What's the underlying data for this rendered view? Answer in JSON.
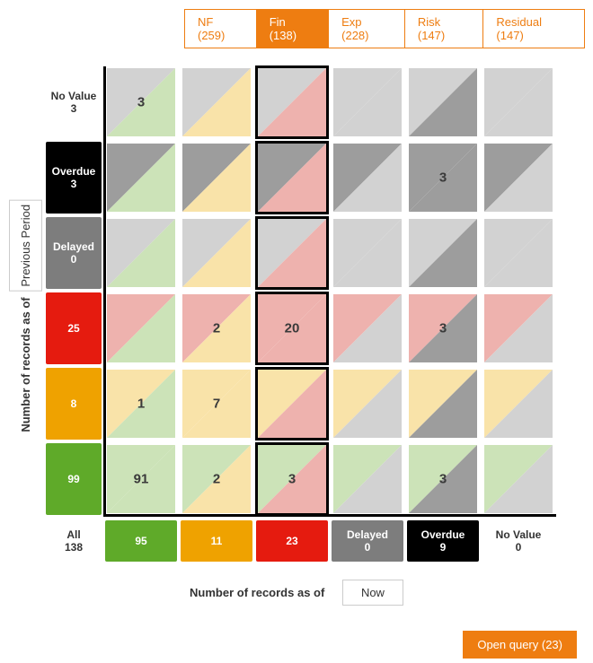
{
  "colors": {
    "accent": "#ee7d11",
    "green": "#5faa29",
    "green_light": "#cce3b8",
    "amber": "#efa200",
    "amber_light": "#f9e3a9",
    "red": "#e51b0f",
    "red_light": "#eeb2ae",
    "gray": "#7d7d7d",
    "gray_med": "#9d9d9d",
    "gray_light": "#d2d2d2",
    "black": "#000000",
    "white": "#ffffff",
    "text_light": "#ffffff",
    "text_dark": "#333333"
  },
  "tabs": [
    {
      "label": "NF (259)",
      "active": false
    },
    {
      "label": "Fin (138)",
      "active": true
    },
    {
      "label": "Exp (228)",
      "active": false
    },
    {
      "label": "Risk (147)",
      "active": false
    },
    {
      "label": "Residual (147)",
      "active": false
    }
  ],
  "y_axis": {
    "label": "Number of records as of",
    "sub": "Previous Period"
  },
  "x_axis": {
    "label": "Number of records as of",
    "sub": "Now"
  },
  "rows": [
    {
      "label": "No Value",
      "count": "3",
      "bg": "white",
      "fg": "text_dark",
      "light": "gray_light"
    },
    {
      "label": "Overdue",
      "count": "3",
      "bg": "black",
      "fg": "text_light",
      "light": "gray_med"
    },
    {
      "label": "Delayed",
      "count": "0",
      "bg": "gray",
      "fg": "text_light",
      "light": "gray_light"
    },
    {
      "label": "",
      "count": "25",
      "bg": "red",
      "fg": "text_light",
      "light": "red_light"
    },
    {
      "label": "",
      "count": "8",
      "bg": "amber",
      "fg": "text_light",
      "light": "amber_light"
    },
    {
      "label": "",
      "count": "99",
      "bg": "green",
      "fg": "text_light",
      "light": "green_light"
    }
  ],
  "cols": [
    {
      "label": "All",
      "count": "138",
      "bg": "white",
      "fg": "text_dark",
      "light": "green_light"
    },
    {
      "label": "",
      "count": "95",
      "bg": "green",
      "fg": "text_light",
      "light": "green_light"
    },
    {
      "label": "",
      "count": "11",
      "bg": "amber",
      "fg": "text_light",
      "light": "amber_light"
    },
    {
      "label": "",
      "count": "23",
      "bg": "red",
      "fg": "text_light",
      "light": "red_light"
    },
    {
      "label": "Delayed",
      "count": "0",
      "bg": "gray",
      "fg": "text_light",
      "light": "gray_light"
    },
    {
      "label": "Overdue",
      "count": "9",
      "bg": "black",
      "fg": "text_light",
      "light": "gray_med"
    },
    {
      "label": "No Value",
      "count": "0",
      "bg": "white",
      "fg": "text_dark",
      "light": "gray_light"
    }
  ],
  "highlight_col": 3,
  "values": [
    [
      "3",
      "",
      "",
      "",
      "",
      ""
    ],
    [
      "",
      "",
      "",
      "",
      "3",
      ""
    ],
    [
      "",
      "",
      "",
      "",
      "",
      ""
    ],
    [
      "",
      "2",
      "20",
      "",
      "3",
      ""
    ],
    [
      "1",
      "7",
      "",
      "",
      "",
      ""
    ],
    [
      "91",
      "2",
      "3",
      "",
      "3",
      ""
    ]
  ],
  "open_query": "Open query (23)"
}
